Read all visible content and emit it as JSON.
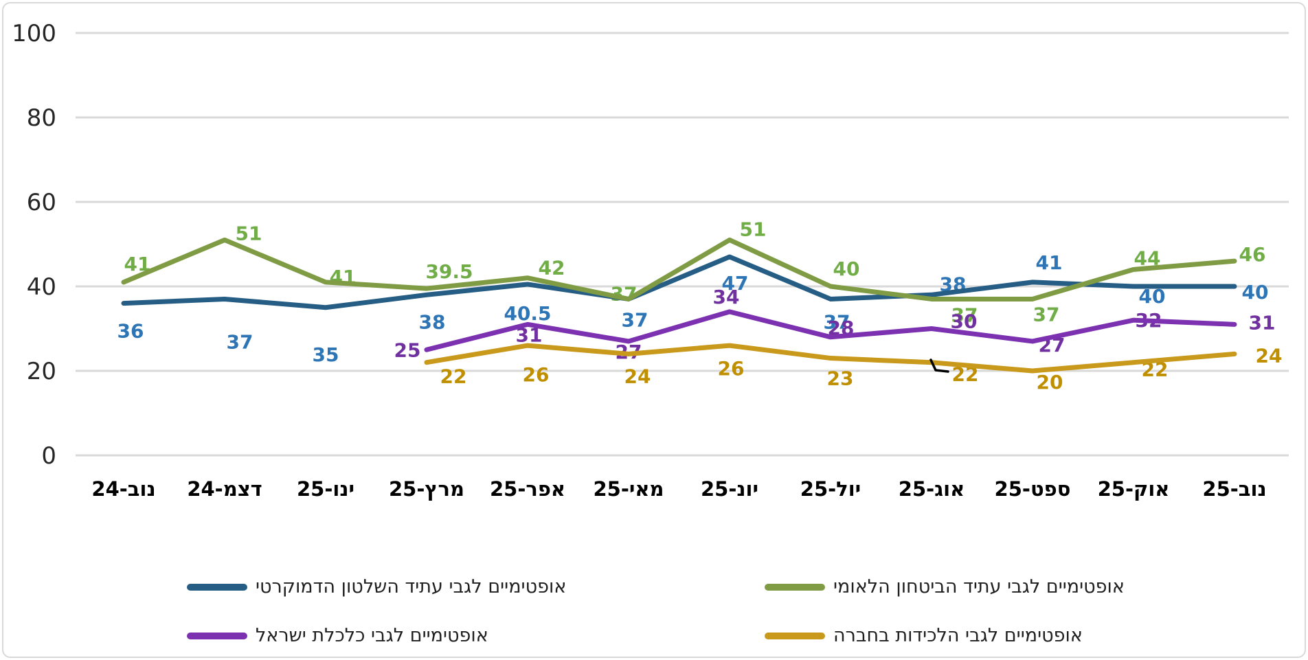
{
  "chart_data": {
    "type": "line",
    "title": "",
    "xlabel": "",
    "ylabel": "",
    "ylim": [
      0,
      100
    ],
    "yticks": [
      0,
      20,
      40,
      60,
      80,
      100
    ],
    "grid": "horizontal",
    "legend_position": "bottom",
    "categories": [
      "נוב-24",
      "דצמ-24",
      "ינו-25",
      "מרץ-25",
      "אפר-25",
      "מאי-25",
      "יונ-25",
      "יול-25",
      "אוג-25",
      "ספט-25",
      "אוק-25",
      "נוב-25"
    ],
    "series": [
      {
        "slug": "democratic-rule",
        "name": "אופטימיים לגבי עתיד השלטון הדמוקרטי",
        "line_color": "#265D85",
        "label_color": "#2E75B6",
        "values": [
          36,
          37,
          35,
          38,
          40.5,
          37,
          47,
          37,
          38,
          41,
          40,
          40
        ]
      },
      {
        "slug": "national-security",
        "name": "אופטימיים לגבי עתיד הביטחון הלאומי",
        "line_color": "#7F9C45",
        "label_color": "#70AD47",
        "values": [
          41,
          51,
          41,
          39.5,
          42,
          37,
          51,
          40,
          37,
          37,
          44,
          46
        ]
      },
      {
        "slug": "israel-economy",
        "name": "אופטימיים לגבי כלכלת ישראל",
        "line_color": "#7C31B0",
        "label_color": "#7030A0",
        "values": [
          null,
          null,
          null,
          25,
          31,
          27,
          34,
          28,
          30,
          27,
          32,
          31
        ]
      },
      {
        "slug": "social-cohesion",
        "name": "אופטימיים לגבי הלכידות בחברה",
        "line_color": "#C8991A",
        "label_color": "#BF8F00",
        "values": [
          null,
          null,
          null,
          22,
          26,
          24,
          26,
          23,
          22,
          20,
          22,
          24
        ]
      }
    ],
    "legend_rows": [
      [
        "democratic-rule",
        "national-security"
      ],
      [
        "israel-economy",
        "social-cohesion"
      ]
    ],
    "annotation": {
      "type": "leader-mark",
      "color": "#000000",
      "near_category": "אוג-25",
      "near_series": "social-cohesion",
      "near_value": 22
    }
  },
  "colors": {
    "gridline": "#D9D9D9",
    "axis_text": "#262626",
    "x_axis_text": "#000000",
    "frame": "#D9D9D9",
    "background": "#FFFFFF"
  }
}
